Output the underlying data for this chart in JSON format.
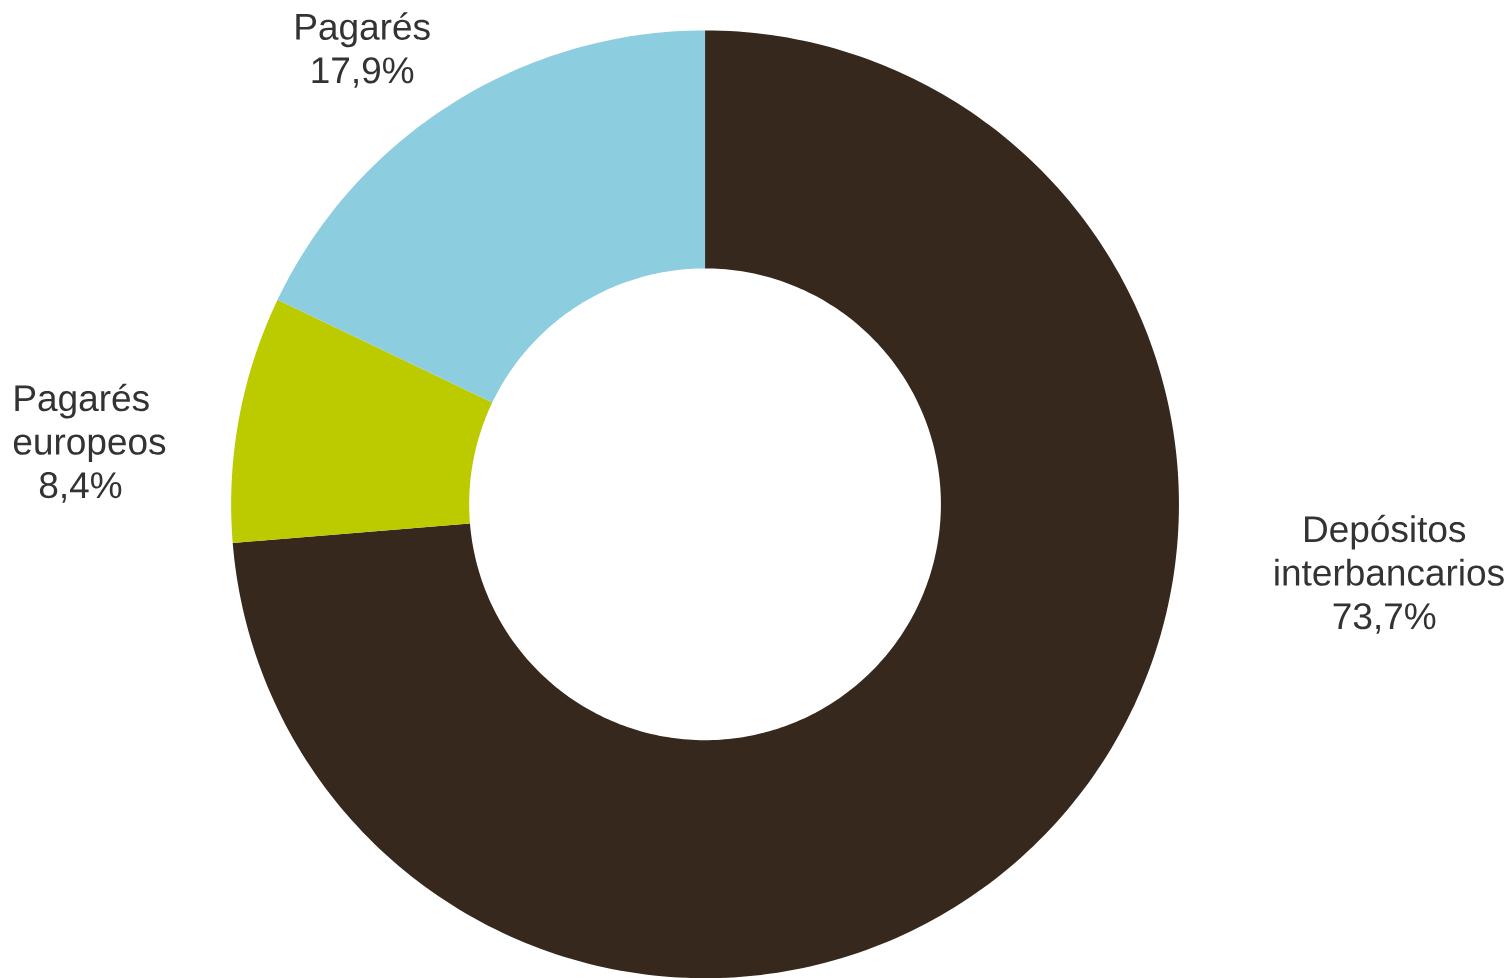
{
  "chart_data": {
    "type": "donut",
    "categories": [
      "Depósitos interbancarios",
      "Pagarés europeos",
      "Pagarés"
    ],
    "values": [
      73.7,
      8.4,
      17.9
    ],
    "colors": [
      "#36281c",
      "#bccb00",
      "#8ccde0"
    ],
    "value_labels": [
      "73,7%",
      "8,4%",
      "17,9%"
    ]
  }
}
